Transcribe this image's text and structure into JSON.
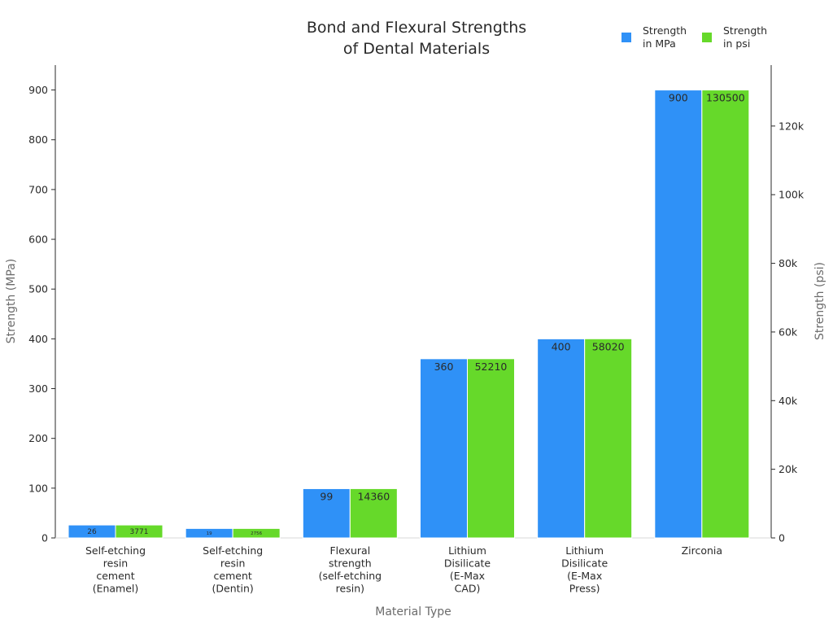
{
  "chart_data": {
    "type": "bar",
    "title": [
      "Bond and Flexural Strengths",
      "of Dental Materials"
    ],
    "xlabel": "Material Type",
    "ylabel": "Strength (MPa)",
    "y2label": "Strength (psi)",
    "categories": [
      [
        "Self-etching",
        "resin",
        "cement",
        "(Enamel)"
      ],
      [
        "Self-etching",
        "resin",
        "cement",
        "(Dentin)"
      ],
      [
        "Flexural",
        "strength",
        "(self-etching",
        "resin)"
      ],
      [
        "Lithium",
        "Disilicate",
        "(E-Max",
        "CAD)"
      ],
      [
        "Lithium",
        "Disilicate",
        "(E-Max",
        "Press)"
      ],
      [
        "Zirconia"
      ]
    ],
    "ylim": [
      0,
      950
    ],
    "y2lim": [
      0,
      137750
    ],
    "yticks": [
      0,
      100,
      200,
      300,
      400,
      500,
      600,
      700,
      800,
      900
    ],
    "ytick_labels": [
      "0",
      "100",
      "200",
      "300",
      "400",
      "500",
      "600",
      "700",
      "800",
      "900"
    ],
    "y2ticks": [
      0,
      20000,
      40000,
      60000,
      80000,
      100000,
      120000
    ],
    "y2tick_labels": [
      "0",
      "20k",
      "40k",
      "60k",
      "80k",
      "100k",
      "120k"
    ],
    "legend_position": "top-right",
    "grid": false,
    "series": [
      {
        "name": [
          "Strength",
          "in MPa"
        ],
        "axis": "left",
        "color": "#2F91F7",
        "values": [
          26,
          19,
          99,
          360,
          400,
          900
        ],
        "labels": [
          "26",
          "19",
          "99",
          "360",
          "400",
          "900"
        ]
      },
      {
        "name": [
          "Strength",
          "in psi"
        ],
        "axis": "right",
        "color": "#66D92A",
        "values": [
          3771,
          2756,
          14360,
          52210,
          58020,
          130500
        ],
        "labels": [
          "3771",
          "2756",
          "14360",
          "52210",
          "58020",
          "130500"
        ]
      }
    ]
  }
}
